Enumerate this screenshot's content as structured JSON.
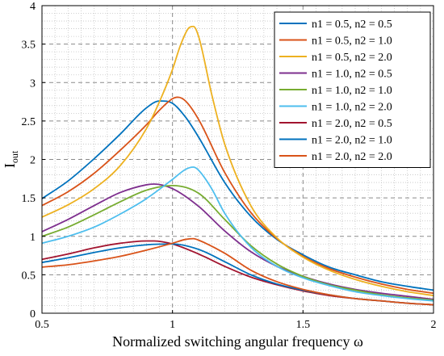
{
  "chart_data": {
    "type": "line",
    "title": "",
    "xlabel": "Normalized switching angular frequency ω",
    "ylabel_main": "I",
    "ylabel_sub": "out",
    "xlim": [
      0.5,
      2.0
    ],
    "ylim": [
      0,
      4
    ],
    "xticks": [
      "0.5",
      "1",
      "1.5",
      "2"
    ],
    "yticks": [
      "0",
      "0.5",
      "1",
      "1.5",
      "2",
      "2.5",
      "3",
      "3.5",
      "4"
    ],
    "grid": true,
    "legend_position": "top-right",
    "series": [
      {
        "name": "n1 = 0.5, n2 = 0.5",
        "color": "#0072BD",
        "x": [
          0.5,
          0.6,
          0.7,
          0.8,
          0.9,
          0.95,
          1.0,
          1.05,
          1.1,
          1.2,
          1.3,
          1.4,
          1.5,
          1.6,
          1.7,
          1.8,
          1.9,
          2.0
        ],
        "y": [
          1.49,
          1.72,
          2.01,
          2.33,
          2.67,
          2.76,
          2.73,
          2.55,
          2.29,
          1.7,
          1.26,
          0.96,
          0.76,
          0.6,
          0.5,
          0.41,
          0.35,
          0.3
        ]
      },
      {
        "name": "n1 = 0.5, n2 = 1.0",
        "color": "#D95319",
        "x": [
          0.5,
          0.6,
          0.7,
          0.8,
          0.9,
          0.95,
          1.0,
          1.02,
          1.05,
          1.1,
          1.2,
          1.3,
          1.4,
          1.5,
          1.6,
          1.7,
          1.8,
          1.9,
          2.0
        ],
        "y": [
          1.4,
          1.58,
          1.82,
          2.12,
          2.45,
          2.64,
          2.79,
          2.81,
          2.76,
          2.52,
          1.83,
          1.31,
          0.97,
          0.74,
          0.58,
          0.47,
          0.38,
          0.31,
          0.26
        ]
      },
      {
        "name": "n1 = 0.5, n2 = 2.0",
        "color": "#EDB120",
        "x": [
          0.5,
          0.6,
          0.7,
          0.8,
          0.9,
          0.95,
          1.0,
          1.03,
          1.06,
          1.08,
          1.1,
          1.15,
          1.2,
          1.3,
          1.4,
          1.5,
          1.6,
          1.7,
          1.8,
          1.9,
          2.0
        ],
        "y": [
          1.25,
          1.41,
          1.62,
          1.92,
          2.4,
          2.75,
          3.17,
          3.48,
          3.7,
          3.73,
          3.6,
          2.85,
          2.2,
          1.4,
          0.98,
          0.73,
          0.56,
          0.44,
          0.35,
          0.28,
          0.23
        ]
      },
      {
        "name": "n1 = 1.0, n2 = 0.5",
        "color": "#7E2F8E",
        "x": [
          0.5,
          0.6,
          0.7,
          0.8,
          0.9,
          0.93,
          1.0,
          1.1,
          1.2,
          1.3,
          1.4,
          1.5,
          1.6,
          1.7,
          1.8,
          1.9,
          2.0
        ],
        "y": [
          1.06,
          1.22,
          1.4,
          1.57,
          1.67,
          1.68,
          1.62,
          1.39,
          1.07,
          0.8,
          0.61,
          0.48,
          0.38,
          0.31,
          0.26,
          0.22,
          0.18
        ]
      },
      {
        "name": "n1 = 1.0, n2 = 1.0",
        "color": "#77AC30",
        "x": [
          0.5,
          0.6,
          0.7,
          0.8,
          0.9,
          1.0,
          1.1,
          1.2,
          1.3,
          1.4,
          1.5,
          1.6,
          1.7,
          1.8,
          1.9,
          2.0
        ],
        "y": [
          1.0,
          1.12,
          1.28,
          1.45,
          1.6,
          1.66,
          1.56,
          1.22,
          0.88,
          0.64,
          0.48,
          0.37,
          0.3,
          0.24,
          0.2,
          0.17
        ]
      },
      {
        "name": "n1 = 1.0, n2 = 2.0",
        "color": "#4DBEEE",
        "x": [
          0.5,
          0.6,
          0.7,
          0.8,
          0.9,
          1.0,
          1.05,
          1.08,
          1.1,
          1.15,
          1.2,
          1.3,
          1.4,
          1.5,
          1.6,
          1.7,
          1.8,
          1.9,
          2.0
        ],
        "y": [
          0.91,
          1.0,
          1.12,
          1.29,
          1.49,
          1.74,
          1.87,
          1.9,
          1.86,
          1.62,
          1.3,
          0.86,
          0.61,
          0.46,
          0.36,
          0.28,
          0.23,
          0.19,
          0.16
        ]
      },
      {
        "name": "n1 = 2.0, n2 = 0.5",
        "color": "#A2142F",
        "x": [
          0.5,
          0.6,
          0.7,
          0.8,
          0.9,
          0.93,
          1.0,
          1.1,
          1.2,
          1.3,
          1.4,
          1.5,
          1.6,
          1.7,
          1.8,
          1.9,
          2.0
        ],
        "y": [
          0.7,
          0.77,
          0.85,
          0.91,
          0.94,
          0.94,
          0.9,
          0.77,
          0.61,
          0.47,
          0.37,
          0.29,
          0.23,
          0.19,
          0.16,
          0.13,
          0.11
        ]
      },
      {
        "name": "n1 = 2.0, n2 = 1.0",
        "color": "#0072BD",
        "x": [
          0.5,
          0.6,
          0.7,
          0.8,
          0.9,
          1.0,
          1.1,
          1.2,
          1.3,
          1.4,
          1.5,
          1.6,
          1.7,
          1.8,
          1.9,
          2.0
        ],
        "y": [
          0.66,
          0.72,
          0.79,
          0.85,
          0.89,
          0.9,
          0.83,
          0.67,
          0.5,
          0.38,
          0.3,
          0.24,
          0.19,
          0.16,
          0.13,
          0.11
        ]
      },
      {
        "name": "n1 = 2.0, n2 = 2.0",
        "color": "#D95319",
        "x": [
          0.5,
          0.6,
          0.7,
          0.8,
          0.9,
          1.0,
          1.05,
          1.08,
          1.1,
          1.2,
          1.3,
          1.4,
          1.5,
          1.6,
          1.7,
          1.8,
          1.9,
          2.0
        ],
        "y": [
          0.6,
          0.63,
          0.68,
          0.74,
          0.82,
          0.91,
          0.96,
          0.97,
          0.95,
          0.78,
          0.56,
          0.41,
          0.31,
          0.24,
          0.19,
          0.16,
          0.13,
          0.11
        ]
      }
    ]
  }
}
